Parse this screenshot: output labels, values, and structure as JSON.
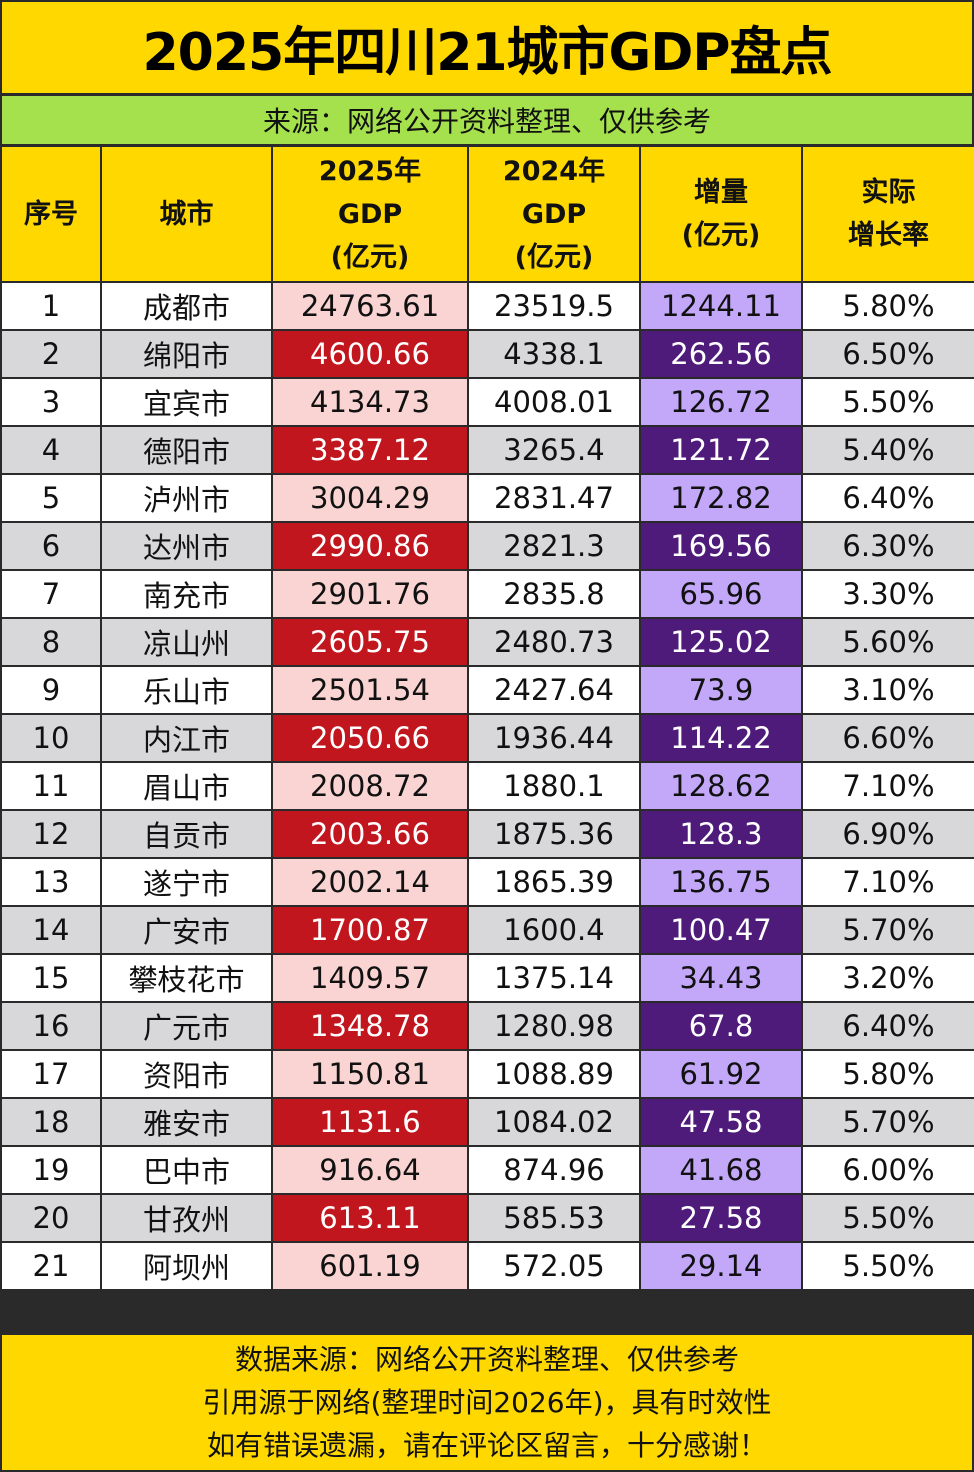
{
  "title": "2025年四川21城市GDP盘点",
  "subtitle": "来源：网络公开资料整理、仅供参考",
  "colors": {
    "yellow": "#FFD800",
    "green": "#A4E14C",
    "pink": "#F9D4D2",
    "red": "#C2161E",
    "light_purple": "#C3A8F9",
    "dark_purple": "#4F1B7B",
    "gray": "#D8D8DA"
  },
  "headers": [
    [
      "序号"
    ],
    [
      "城市"
    ],
    [
      "2025年",
      "GDP",
      "(亿元)"
    ],
    [
      "2024年",
      "GDP",
      "(亿元)"
    ],
    [
      "增量",
      "(亿元)"
    ],
    [
      "实际",
      "增长率"
    ]
  ],
  "rows": [
    [
      "1",
      "成都市",
      "24763.61",
      "23519.5",
      "1244.11",
      "5.80%"
    ],
    [
      "2",
      "绵阳市",
      "4600.66",
      "4338.1",
      "262.56",
      "6.50%"
    ],
    [
      "3",
      "宜宾市",
      "4134.73",
      "4008.01",
      "126.72",
      "5.50%"
    ],
    [
      "4",
      "德阳市",
      "3387.12",
      "3265.4",
      "121.72",
      "5.40%"
    ],
    [
      "5",
      "泸州市",
      "3004.29",
      "2831.47",
      "172.82",
      "6.40%"
    ],
    [
      "6",
      "达州市",
      "2990.86",
      "2821.3",
      "169.56",
      "6.30%"
    ],
    [
      "7",
      "南充市",
      "2901.76",
      "2835.8",
      "65.96",
      "3.30%"
    ],
    [
      "8",
      "凉山州",
      "2605.75",
      "2480.73",
      "125.02",
      "5.60%"
    ],
    [
      "9",
      "乐山市",
      "2501.54",
      "2427.64",
      "73.9",
      "3.10%"
    ],
    [
      "10",
      "内江市",
      "2050.66",
      "1936.44",
      "114.22",
      "6.60%"
    ],
    [
      "11",
      "眉山市",
      "2008.72",
      "1880.1",
      "128.62",
      "7.10%"
    ],
    [
      "12",
      "自贡市",
      "2003.66",
      "1875.36",
      "128.3",
      "6.90%"
    ],
    [
      "13",
      "遂宁市",
      "2002.14",
      "1865.39",
      "136.75",
      "7.10%"
    ],
    [
      "14",
      "广安市",
      "1700.87",
      "1600.4",
      "100.47",
      "5.70%"
    ],
    [
      "15",
      "攀枝花市",
      "1409.57",
      "1375.14",
      "34.43",
      "3.20%"
    ],
    [
      "16",
      "广元市",
      "1348.78",
      "1280.98",
      "67.8",
      "6.40%"
    ],
    [
      "17",
      "资阳市",
      "1150.81",
      "1088.89",
      "61.92",
      "5.80%"
    ],
    [
      "18",
      "雅安市",
      "1131.6",
      "1084.02",
      "47.58",
      "5.70%"
    ],
    [
      "19",
      "巴中市",
      "916.64",
      "874.96",
      "41.68",
      "6.00%"
    ],
    [
      "20",
      "甘孜州",
      "613.11",
      "585.53",
      "27.58",
      "5.50%"
    ],
    [
      "21",
      "阿坝州",
      "601.19",
      "572.05",
      "29.14",
      "5.50%"
    ]
  ],
  "footer": [
    "数据来源：网络公开资料整理、仅供参考",
    "引用源于网络(整理时间2026年)，具有时效性",
    "如有错误遗漏，请在评论区留言，十分感谢！"
  ]
}
